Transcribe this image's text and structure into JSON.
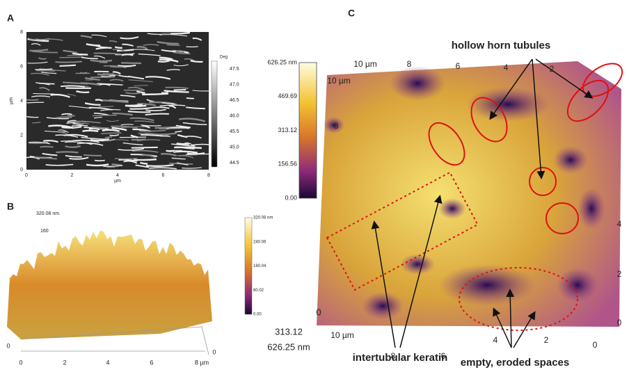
{
  "panels": [
    {
      "label": "A",
      "y_axis_label": "µm",
      "x_axis_label": "µm",
      "x_ticks": [
        "0",
        "2",
        "4",
        "6",
        "8"
      ],
      "y_ticks": [
        "0",
        "2",
        "4",
        "6",
        "8"
      ],
      "colorbar": {
        "title": "Deg",
        "ticks": [
          "47.5",
          "47.0",
          "46.5",
          "46.0",
          "45.5",
          "45.0",
          "44.5"
        ]
      }
    },
    {
      "label": "B",
      "z_labels": [
        "320.08 nm",
        "160"
      ],
      "x_ticks": [
        "0",
        "2",
        "4",
        "6",
        "8 µm"
      ],
      "corner_labels": [
        "0",
        "0"
      ],
      "colorbar": {
        "ticks": [
          "320.08 nm",
          "240.06",
          "160.04",
          "80.02",
          "0.00"
        ]
      }
    },
    {
      "label": "C",
      "colorbar": {
        "ticks": [
          "626.25 nm",
          "469.69",
          "313.12",
          "156.56",
          "0.00"
        ]
      },
      "top_ticks": [
        "10 µm",
        "8",
        "6",
        "4",
        "2"
      ],
      "left_ticks": [
        "10 µm",
        "8"
      ],
      "right_ticks": [
        "4",
        "2",
        "0"
      ],
      "bottom_ticks": [
        "10 µm",
        "8",
        "6",
        "4",
        "2",
        "0"
      ],
      "z_labels": [
        "0",
        "313.12",
        "626.25 nm"
      ],
      "annotations": [
        "hollow horn tubules",
        "intertubular keratin",
        "empty, eroded spaces"
      ]
    }
  ]
}
